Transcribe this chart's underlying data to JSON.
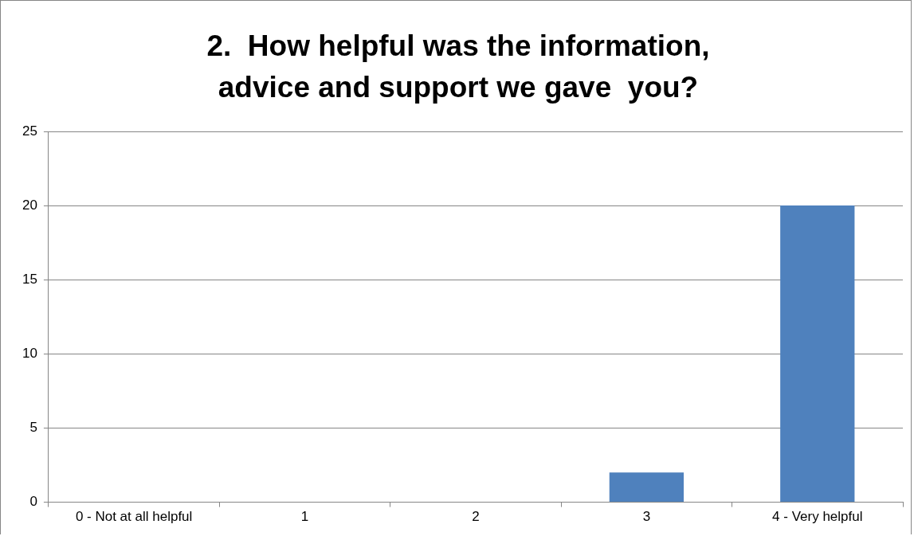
{
  "chart_data": {
    "type": "bar",
    "title": "2.  How helpful was the information, advice and support we gave  you?",
    "categories": [
      "0 - Not at all helpful",
      "1",
      "2",
      "3",
      "4 - Very helpful"
    ],
    "values": [
      0,
      0,
      0,
      2,
      20
    ],
    "color": "#4f81bd",
    "ylim": [
      0,
      25
    ],
    "yticks": [
      0,
      5,
      10,
      15,
      20,
      25
    ],
    "grid": "y",
    "legend": false
  }
}
